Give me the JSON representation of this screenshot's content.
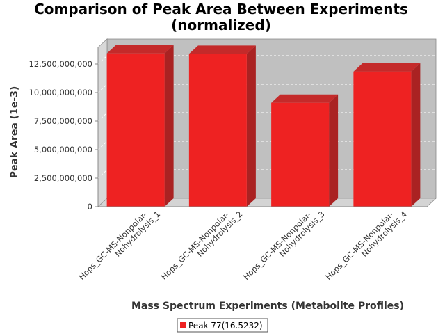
{
  "chart_data": {
    "type": "bar",
    "title_lines": [
      "Comparison of Peak Area Between Experiments",
      "(normalized)"
    ],
    "xlabel": "Mass Spectrum Experiments (Metabolite Profiles)",
    "ylabel": "Peak Area (1e-3)",
    "categories": [
      [
        "Hops_GC-MS-Nonpolar-",
        "Nohydrolysis_1"
      ],
      [
        "Hops_GC-MS-Nonpolar-",
        "Nohydrolysis_2"
      ],
      [
        "Hops_GC-MS-Nonpolar-",
        "Nohydrolysis_3"
      ],
      [
        "Hops_GC-MS-Nonpolar-",
        "Nohydrolysis_4"
      ]
    ],
    "series": [
      {
        "name": "Peak 77(16.5232)",
        "color": "#ee2222",
        "values": [
          13430000000,
          13390000000,
          9100000000,
          11840000000
        ]
      }
    ],
    "ylim": [
      0,
      14000000000
    ],
    "yticks": [
      0,
      2500000000,
      5000000000,
      7500000000,
      10000000000,
      12500000000
    ],
    "ytick_labels": [
      "0",
      "2,500,000,000",
      "5,000,000,000",
      "7,500,000,000",
      "10,000,000,000",
      "12,500,000,000"
    ],
    "grid": true,
    "legend_position": "bottom",
    "colors": {
      "plot_background": "#c0c0c0",
      "grid": "#ffffff",
      "bar_side": "#aa2222",
      "bar_top": "#c42a2a"
    }
  }
}
